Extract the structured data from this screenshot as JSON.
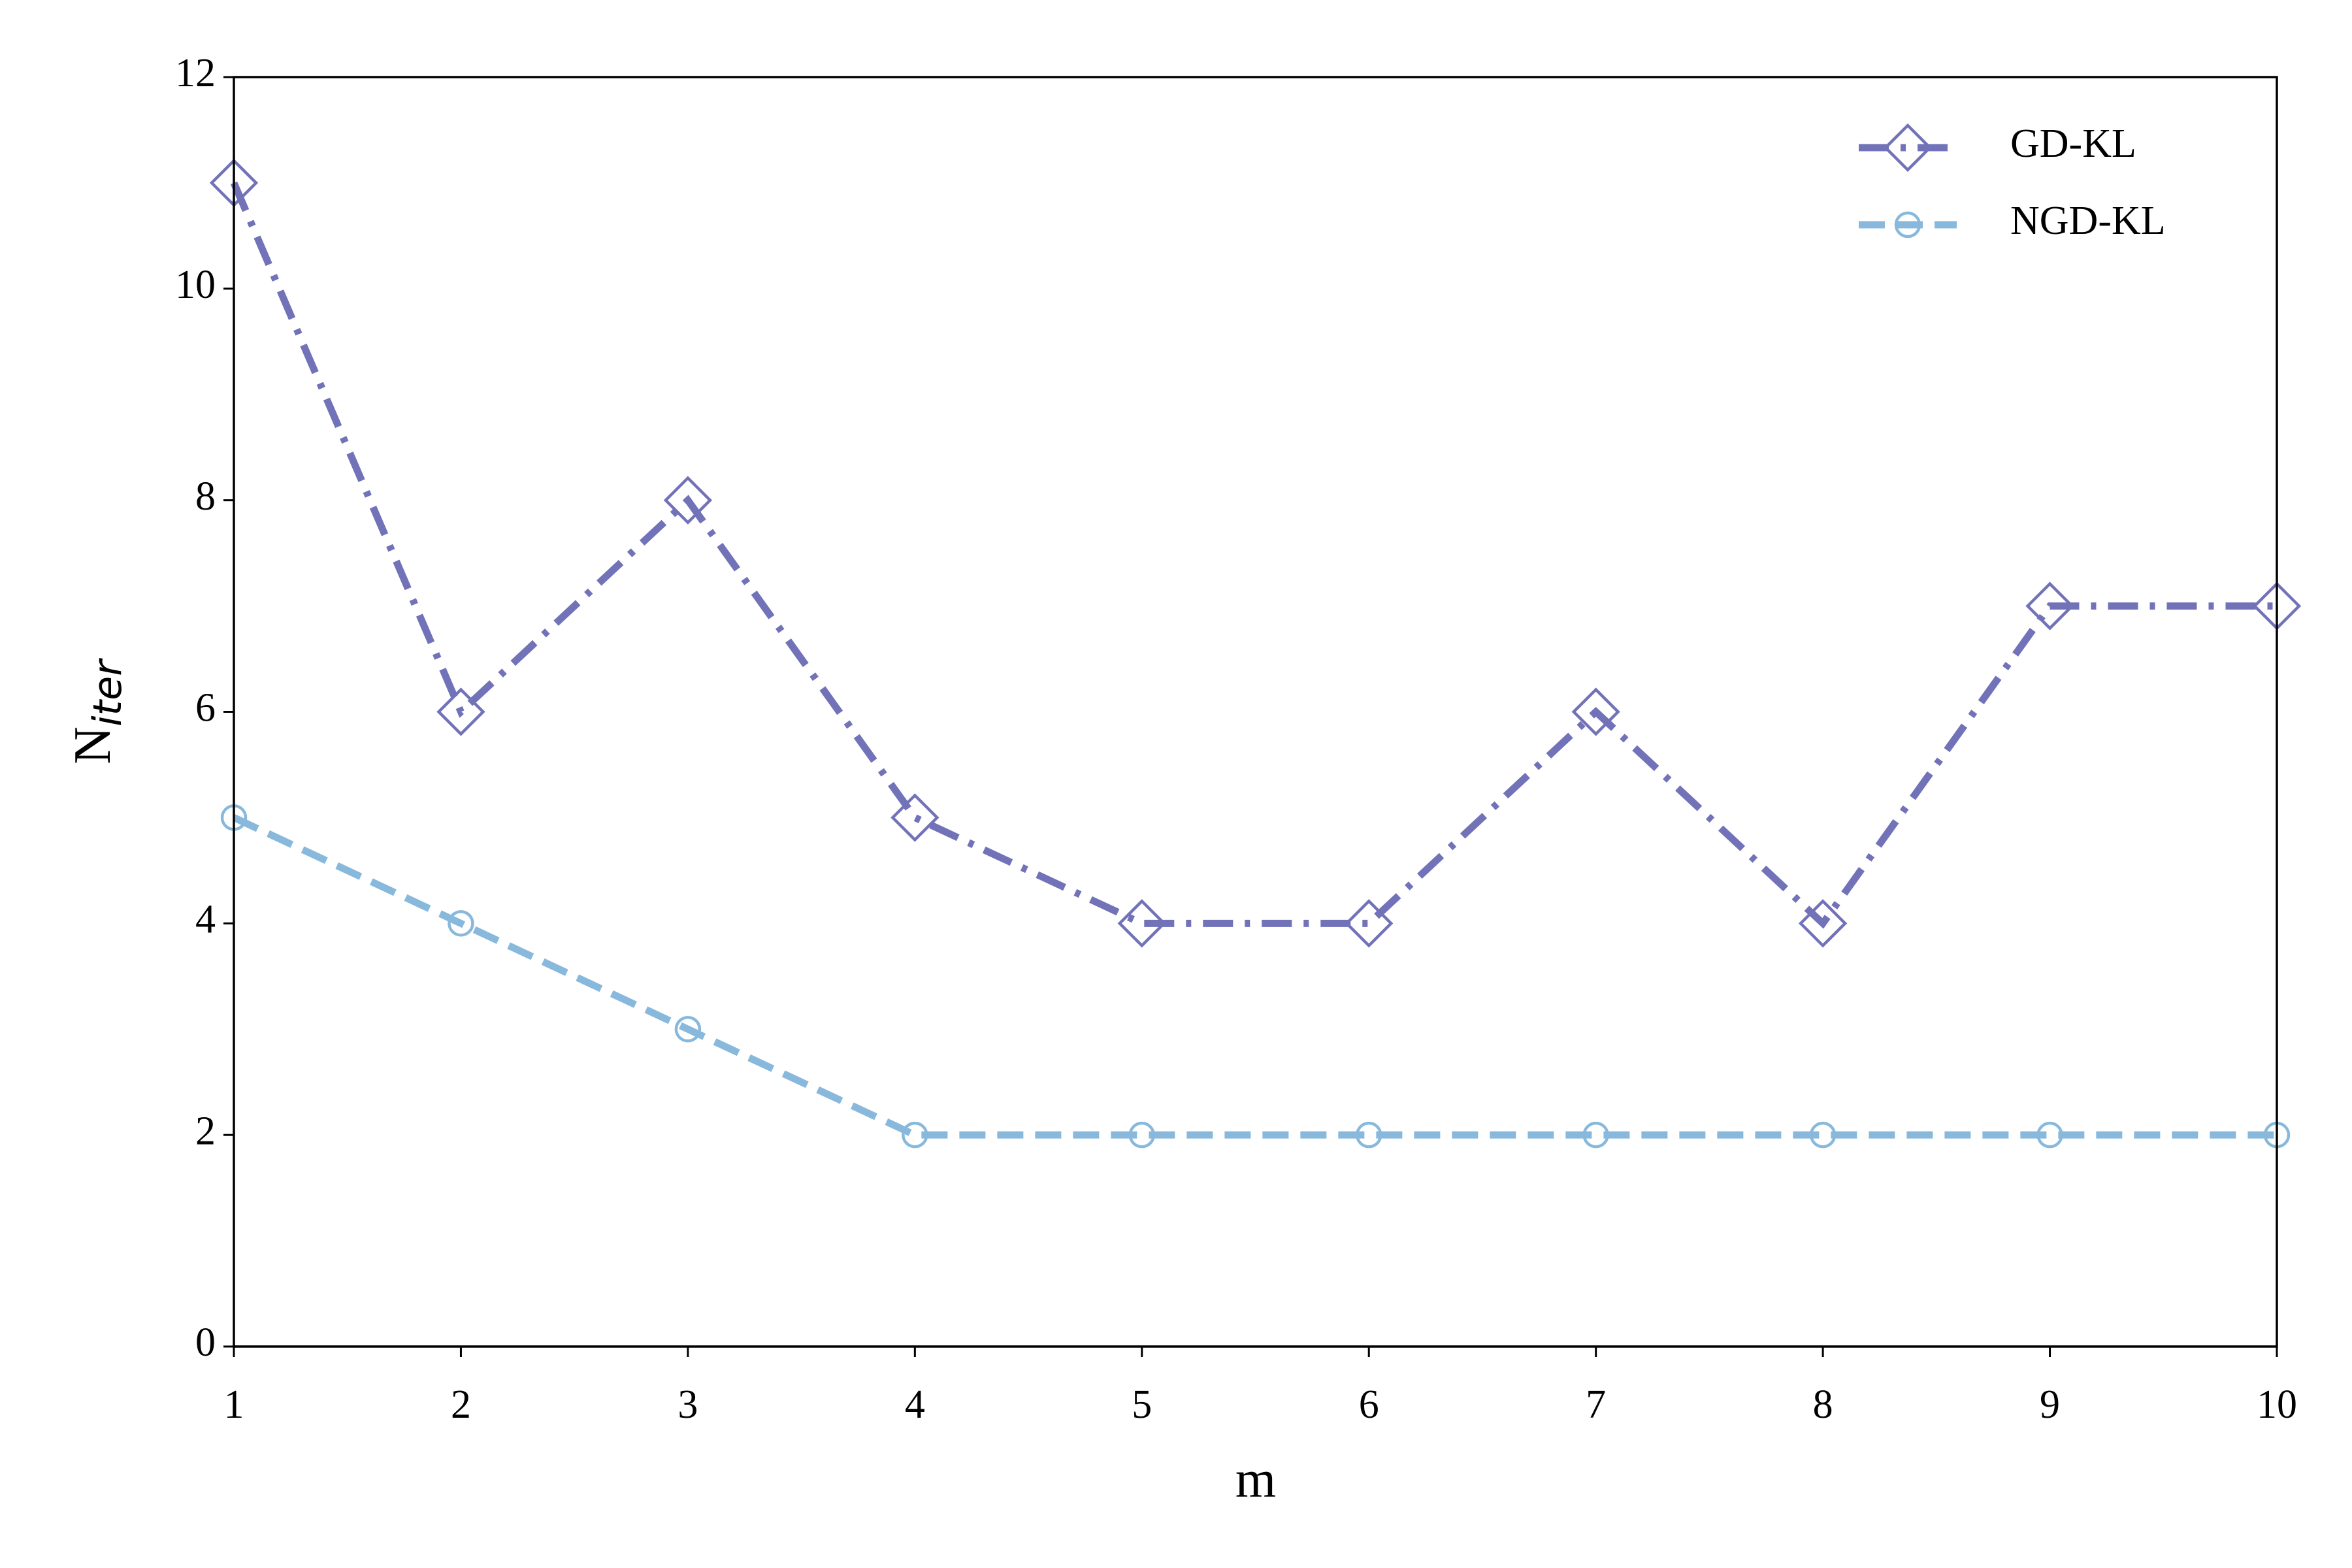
{
  "chart_data": {
    "type": "line",
    "xlabel": "m",
    "ylabel": "N",
    "ylabel_sub": "iter",
    "x": [
      1,
      2,
      3,
      4,
      5,
      6,
      7,
      8,
      9,
      10
    ],
    "series": [
      {
        "name": "GD-KL",
        "color": "#7272b9",
        "linestyle": "dashdot",
        "marker": "diamond",
        "values": [
          11,
          6,
          8,
          5,
          4,
          4,
          6,
          4,
          7,
          7
        ]
      },
      {
        "name": "NGD-KL",
        "color": "#88b9dc",
        "linestyle": "dashed",
        "marker": "circle",
        "values": [
          5,
          4,
          3,
          2,
          2,
          2,
          2,
          2,
          2,
          2
        ]
      }
    ],
    "xlim": [
      1,
      10
    ],
    "xticks": [
      1,
      2,
      3,
      4,
      5,
      6,
      7,
      8,
      9,
      10
    ],
    "ylim": [
      0,
      12
    ],
    "yticks": [
      0,
      2,
      4,
      6,
      8,
      10,
      12
    ],
    "legend": "upper right",
    "grid": false
  }
}
